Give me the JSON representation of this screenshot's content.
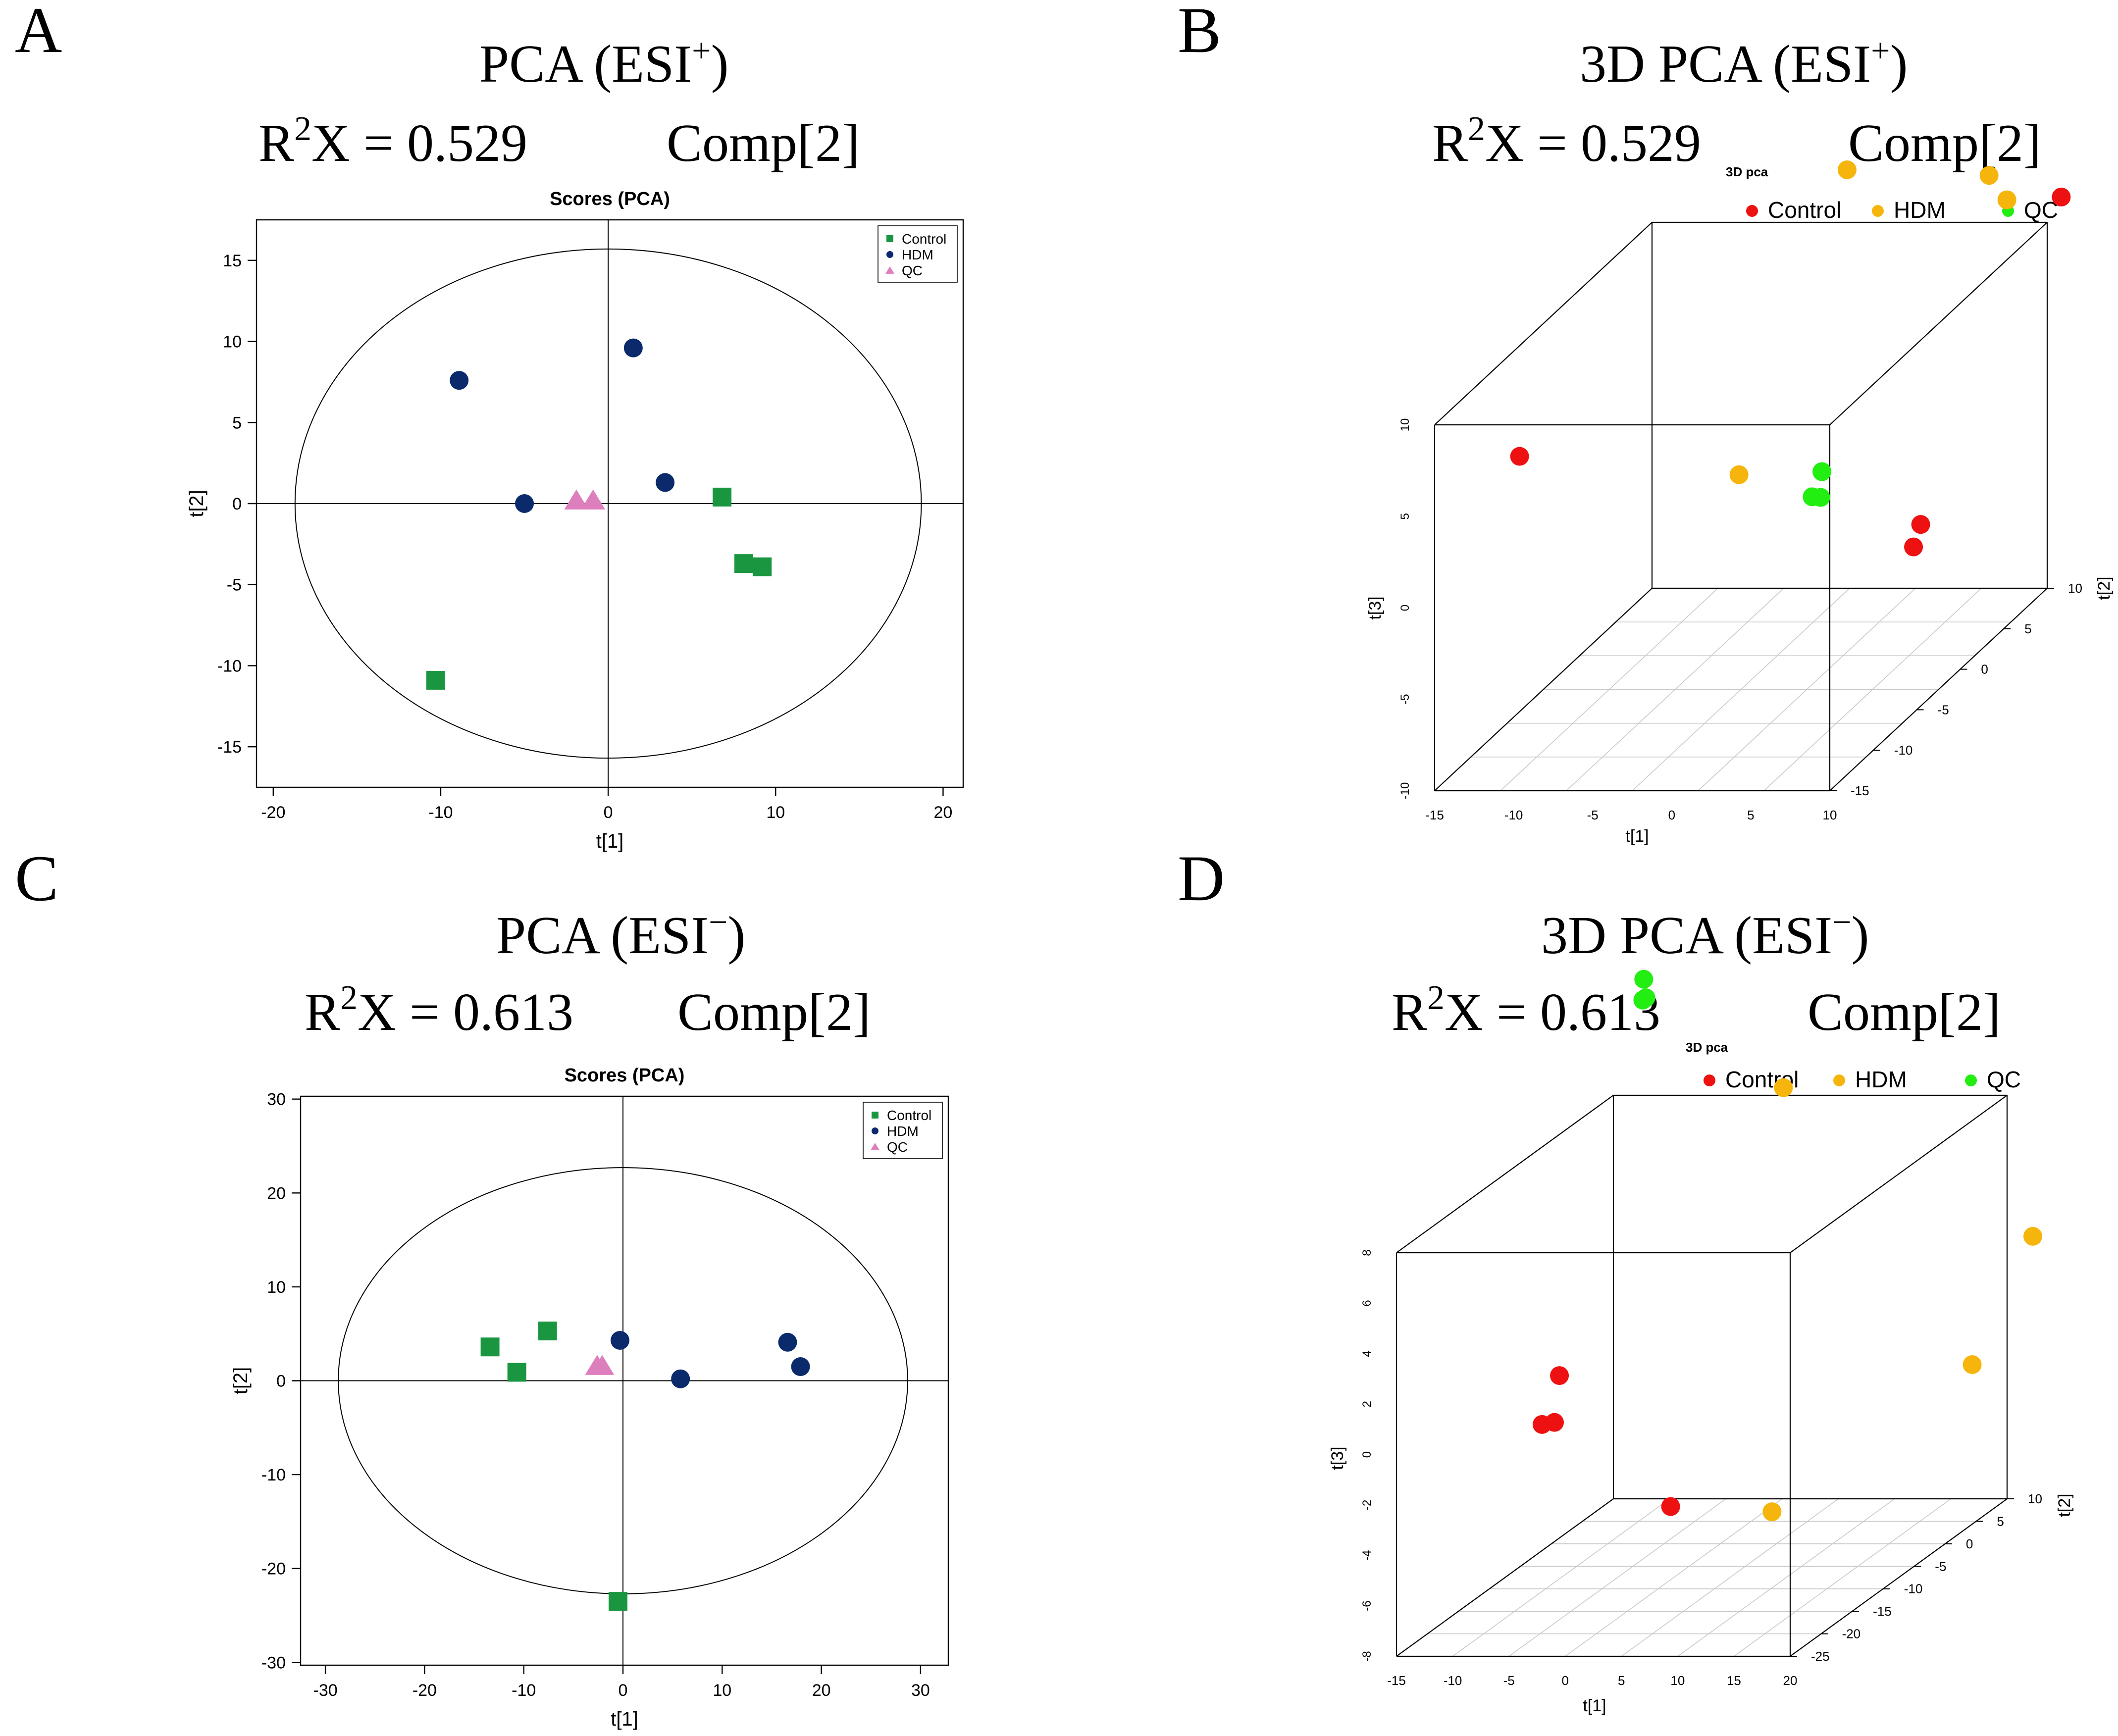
{
  "panels": {
    "A": {
      "letter": "A",
      "heading": "PCA (ESI",
      "heading_sup": "+",
      "heading_close": ")",
      "r2x_prefix": "R",
      "r2x_sup": "2",
      "r2x_rest": "X = 0.529",
      "comp": "Comp[2]"
    },
    "B": {
      "letter": "B",
      "heading": "3D PCA (ESI",
      "heading_sup": "+",
      "heading_close": ")",
      "r2x_prefix": "R",
      "r2x_sup": "2",
      "r2x_rest": "X = 0.529",
      "comp": "Comp[2]"
    },
    "C": {
      "letter": "C",
      "heading": "PCA (ESI",
      "heading_sup": "−",
      "heading_close": ")",
      "r2x_prefix": "R",
      "r2x_sup": "2",
      "r2x_rest": "X = 0.613",
      "comp": "Comp[2]"
    },
    "D": {
      "letter": "D",
      "heading": "3D PCA (ESI",
      "heading_sup": "−",
      "heading_close": ")",
      "r2x_prefix": "R",
      "r2x_sup": "2",
      "r2x_rest": "X = 0.613",
      "comp": "Comp[2]"
    }
  },
  "colors": {
    "control_2d": "#1a9641",
    "hdm_2d": "#0b2a6b",
    "qc_2d": "#de7fbd",
    "control_3d": "#ee1111",
    "hdm_3d": "#f5b50c",
    "qc_3d": "#22ee11"
  },
  "chart_data": [
    {
      "type": "scatter",
      "panel": "A",
      "title": "Scores (PCA)",
      "xlabel": "t[1]",
      "ylabel": "t[2]",
      "xlim": [
        -21,
        21.2
      ],
      "ylim": [
        -17.5,
        17.5
      ],
      "xticks": [
        -20,
        -10,
        0,
        10,
        20
      ],
      "yticks": [
        -15,
        -10,
        -5,
        0,
        5,
        10,
        15
      ],
      "ellipse": {
        "rx": 18.7,
        "ry": 15.7
      },
      "legend": [
        "Control",
        "HDM",
        "QC"
      ],
      "series": [
        {
          "name": "Control",
          "marker": "square",
          "points": [
            [
              6.8,
              0.4
            ],
            [
              8.1,
              -3.7
            ],
            [
              9.2,
              -3.9
            ],
            [
              -10.3,
              -10.9
            ]
          ]
        },
        {
          "name": "HDM",
          "marker": "circle",
          "points": [
            [
              -8.9,
              7.6
            ],
            [
              1.5,
              9.6
            ],
            [
              3.4,
              1.3
            ],
            [
              -5.0,
              0.0
            ]
          ]
        },
        {
          "name": "QC",
          "marker": "triangle",
          "points": [
            [
              -1.9,
              0.2
            ],
            [
              -0.9,
              0.2
            ]
          ]
        }
      ]
    },
    {
      "type": "scatter",
      "panel": "C",
      "title": "Scores (PCA)",
      "xlabel": "t[1]",
      "ylabel": "t[2]",
      "xlim": [
        -32.5,
        32.8
      ],
      "ylim": [
        -30.3,
        30.3
      ],
      "xticks": [
        -30,
        -20,
        -10,
        0,
        10,
        20,
        30
      ],
      "yticks": [
        -30,
        -20,
        -10,
        0,
        10,
        20,
        30
      ],
      "ellipse": {
        "rx": 28.7,
        "ry": 22.7
      },
      "legend": [
        "Control",
        "HDM",
        "QC"
      ],
      "series": [
        {
          "name": "Control",
          "marker": "square",
          "points": [
            [
              -13.4,
              3.6
            ],
            [
              -7.6,
              5.3
            ],
            [
              -10.7,
              0.9
            ],
            [
              -0.5,
              -23.5
            ]
          ]
        },
        {
          "name": "HDM",
          "marker": "circle",
          "points": [
            [
              -0.3,
              4.3
            ],
            [
              5.8,
              0.2
            ],
            [
              16.6,
              4.1
            ],
            [
              17.9,
              1.5
            ]
          ]
        },
        {
          "name": "QC",
          "marker": "triangle",
          "points": [
            [
              -2.6,
              1.6
            ],
            [
              -2.1,
              1.6
            ]
          ]
        }
      ]
    },
    {
      "type": "scatter3d",
      "panel": "B",
      "title": "3D pca",
      "xlabel": "t[1]",
      "ylabel": "t[2]",
      "zlabel": "t[3]",
      "xticks": [
        "-15",
        "-10",
        "-5",
        "0",
        "5",
        "10"
      ],
      "yticks": [
        "-15",
        "-10",
        "-5",
        "0",
        "5",
        "10"
      ],
      "zticks": [
        "-10",
        "-5",
        "0",
        "5",
        "10"
      ],
      "legend": [
        "Control",
        "HDM",
        "QC"
      ],
      "series": [
        {
          "name": "Control",
          "points": [
            [
              -13.2,
              -8.5,
              5.4
            ],
            [
              8.8,
              13.8,
              9.7
            ],
            [
              8.6,
              -2.0,
              -1.2
            ],
            [
              9.3,
              -4.1,
              -1.5
            ]
          ]
        },
        {
          "name": "HDM",
          "points": [
            [
              -2.0,
              8.8,
              13.4
            ],
            [
              5.5,
              11.5,
              11.9
            ],
            [
              5.8,
              13.0,
              9.9
            ],
            [
              -1.3,
              -4.9,
              2.8
            ]
          ]
        },
        {
          "name": "QC",
          "points": [
            [
              5.1,
              -7.0,
              3.9
            ],
            [
              5.2,
              -8.3,
              3.1
            ],
            [
              5.9,
              -8.6,
              3.2
            ]
          ]
        }
      ]
    },
    {
      "type": "scatter3d",
      "panel": "D",
      "title": "3D pca",
      "xlabel": "t[1]",
      "ylabel": "t[2]",
      "zlabel": "t[3]",
      "xticks": [
        "-15",
        "-10",
        "-5",
        "0",
        "5",
        "10",
        "15",
        "20"
      ],
      "yticks": [
        "-25",
        "-20",
        "-15",
        "-10",
        "-5",
        "0",
        "5",
        "10"
      ],
      "zticks": [
        "-8",
        "-6",
        "-4",
        "-2",
        "0",
        "2",
        "4",
        "6",
        "8"
      ],
      "legend": [
        "Control",
        "HDM",
        "QC"
      ],
      "series": [
        {
          "name": "Control",
          "points": [
            [
              -7.4,
              -12.5,
              0.9
            ],
            [
              -7.9,
              -14.4,
              -0.7
            ],
            [
              -5.2,
              -17.3,
              -0.1
            ],
            [
              3.7,
              -14.7,
              -3.9
            ]
          ]
        },
        {
          "name": "HDM",
          "points": [
            [
              3.2,
              4.4,
              9.3
            ],
            [
              23.5,
              7.8,
              2.8
            ],
            [
              26.1,
              -6.7,
              0.3
            ],
            [
              11.5,
              -12.5,
              -4.5
            ]
          ]
        },
        {
          "name": "QC",
          "points": [
            [
              -12.3,
              10.0,
              12.6
            ],
            [
              -12.0,
              9.8,
              11.9
            ],
            [
              -12.0,
              9.3,
              11.9
            ]
          ]
        }
      ]
    }
  ]
}
